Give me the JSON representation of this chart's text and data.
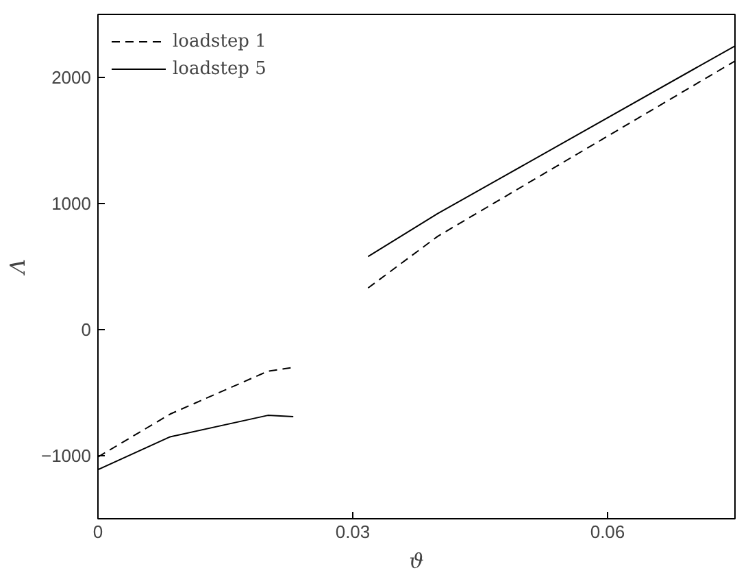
{
  "chart_data": {
    "type": "line",
    "xlabel": "ϑ",
    "ylabel": "Λ",
    "x": [
      0,
      0.0085,
      0.02,
      0.023,
      0.027,
      0.0318,
      0.04,
      0.075
    ],
    "series": [
      {
        "name": "loadstep 1",
        "color": "#000000",
        "line_style": "dashed",
        "values": [
          -1010,
          -670,
          -330,
          -300,
          null,
          330,
          740,
          2130
        ]
      },
      {
        "name": "loadstep 5",
        "color": "#000000",
        "line_style": "solid",
        "values": [
          -1110,
          -850,
          -680,
          -690,
          null,
          580,
          920,
          2250
        ]
      }
    ],
    "xlim": [
      0,
      0.075
    ],
    "ylim": [
      -1500,
      2500
    ],
    "xticks": [
      0,
      0.03,
      0.06
    ],
    "yticks": [
      -1000,
      0,
      1000,
      2000
    ],
    "grid": false,
    "legend": "top left",
    "marker": "none"
  }
}
